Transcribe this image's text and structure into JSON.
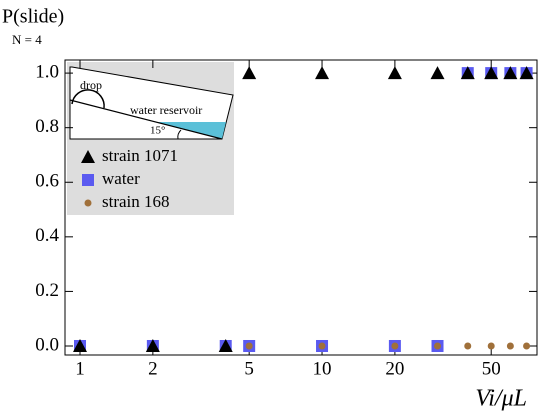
{
  "chart_data": {
    "type": "scatter",
    "ylabel": "P(slide)",
    "subtitle": "N = 4",
    "xlabel": "Vi/μL",
    "xscale": "log",
    "xlim": [
      0.867,
      77.3
    ],
    "ylim": [
      -0.033,
      1.048
    ],
    "xticks": [
      1,
      2,
      5,
      10,
      20,
      50
    ],
    "yticks": [
      {
        "value": 0,
        "label": "0.0"
      },
      0.2,
      0.4,
      0.6,
      0.8,
      {
        "value": 1,
        "label": "1.0"
      }
    ],
    "annotations": [
      "drop",
      "water reservoir",
      "15°"
    ],
    "series": [
      {
        "name": "strain 1071",
        "color": "#000000",
        "marker": "triangle",
        "x": [
          1,
          2,
          4,
          5,
          10,
          20,
          30,
          40,
          50,
          60,
          70
        ],
        "values": [
          0,
          0,
          0,
          1,
          1,
          1,
          1,
          1,
          1,
          1,
          1
        ]
      },
      {
        "name": "water",
        "color": "#5a5af0",
        "marker": "square",
        "x": [
          1,
          2,
          4,
          5,
          10,
          20,
          30,
          40,
          50,
          60,
          70
        ],
        "values": [
          0,
          0,
          0,
          0,
          0,
          0,
          0,
          1,
          1,
          1,
          1
        ]
      },
      {
        "name": "strain 168",
        "color": "#a0703a",
        "marker": "circle",
        "x": [
          5,
          10,
          20,
          30,
          40,
          50,
          60,
          70
        ],
        "values": [
          0,
          0,
          0,
          0,
          0,
          0,
          0,
          0
        ]
      }
    ]
  }
}
